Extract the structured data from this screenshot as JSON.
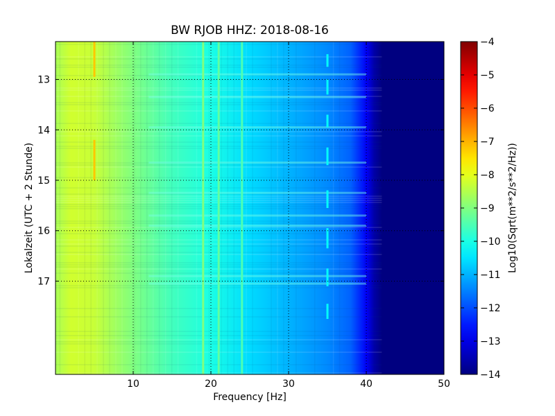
{
  "chart_data": {
    "type": "heatmap",
    "title": "BW RJOB HHZ: 2018-08-16",
    "xlabel": "Frequency [Hz]",
    "ylabel": "Lokalzeit (UTC + 2 Stunde)",
    "xlim": [
      0,
      50
    ],
    "ylim": [
      12.25,
      18.85
    ],
    "y_inverted": true,
    "x_ticks": [
      10,
      20,
      30,
      40,
      50
    ],
    "x_tick_labels": [
      "10",
      "20",
      "30",
      "40",
      "50"
    ],
    "y_ticks": [
      13,
      14,
      15,
      16,
      17
    ],
    "y_tick_labels": [
      "13",
      "14",
      "15",
      "16",
      "17"
    ],
    "grid": true,
    "colormap": "jet",
    "colorbar": {
      "label": "Log10(Sqrt(m**2/s**2/Hz))",
      "range": [
        -14,
        -4
      ],
      "ticks": [
        -4,
        -5,
        -6,
        -7,
        -8,
        -9,
        -10,
        -11,
        -12,
        -13,
        -14
      ],
      "tick_labels": [
        "−4",
        "−5",
        "−6",
        "−7",
        "−8",
        "−9",
        "−10",
        "−11",
        "−12",
        "−13",
        "−14"
      ]
    },
    "spectrum_profile": {
      "frequency_hz": [
        0,
        2,
        5,
        10,
        15,
        20,
        25,
        30,
        35,
        38,
        40,
        41,
        42,
        50
      ],
      "level": [
        -8.6,
        -8.2,
        -8.3,
        -9.0,
        -9.6,
        -10.0,
        -10.6,
        -11.0,
        -11.4,
        -11.8,
        -12.8,
        -13.6,
        -14.0,
        -14.0
      ]
    },
    "spectral_lines": [
      {
        "frequency_hz": 5.0,
        "level": -7.2,
        "time_ranges": [
          [
            12.25,
            12.95
          ],
          [
            14.2,
            15.0
          ]
        ]
      },
      {
        "frequency_hz": 19.0,
        "level": -9.0,
        "time_ranges": [
          [
            12.25,
            18.85
          ]
        ]
      },
      {
        "frequency_hz": 21.0,
        "level": -9.3,
        "time_ranges": [
          [
            12.25,
            18.85
          ]
        ]
      },
      {
        "frequency_hz": 24.0,
        "level": -9.5,
        "time_ranges": [
          [
            12.25,
            18.85
          ]
        ]
      },
      {
        "frequency_hz": 35.0,
        "level": -10.2,
        "time_ranges": [
          [
            12.5,
            12.75
          ],
          [
            13.0,
            13.3
          ],
          [
            13.7,
            13.95
          ],
          [
            14.35,
            14.7
          ],
          [
            15.2,
            15.55
          ],
          [
            15.95,
            16.35
          ],
          [
            16.75,
            17.1
          ],
          [
            17.45,
            17.75
          ]
        ]
      }
    ],
    "broadband_events_time": [
      12.9,
      13.35,
      13.95,
      14.65,
      15.25,
      15.7,
      15.9,
      16.9,
      17.05
    ]
  }
}
